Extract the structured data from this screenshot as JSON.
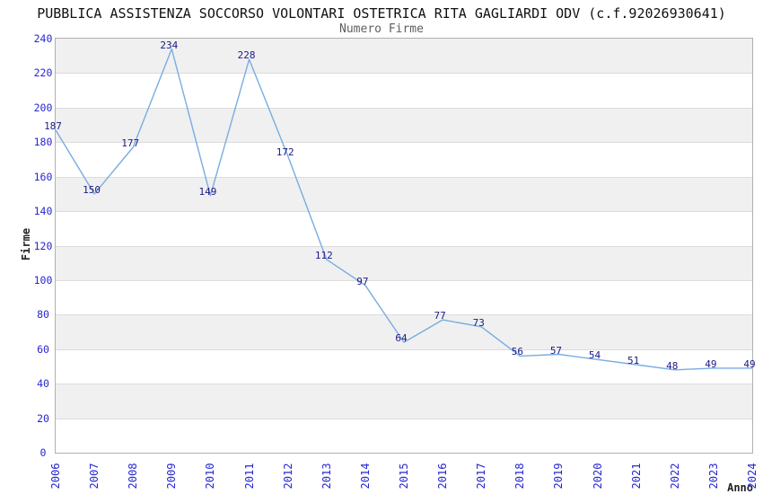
{
  "chart_data": {
    "type": "line",
    "title": "PUBBLICA ASSISTENZA SOCCORSO VOLONTARI OSTETRICA RITA GAGLIARDI ODV (c.f.92026930641)",
    "subtitle": "Numero Firme",
    "xlabel": "Anno",
    "ylabel": "Firme",
    "x": [
      2006,
      2007,
      2008,
      2009,
      2010,
      2011,
      2012,
      2013,
      2014,
      2015,
      2016,
      2017,
      2018,
      2019,
      2020,
      2021,
      2022,
      2023,
      2024
    ],
    "values": [
      187,
      150,
      177,
      234,
      149,
      228,
      172,
      112,
      97,
      64,
      77,
      73,
      56,
      57,
      54,
      51,
      48,
      49,
      49
    ],
    "ylim": [
      0,
      240
    ],
    "ytick_step": 20,
    "grid": "horizontal-bands-alternating",
    "legend": "none",
    "data_labels": true,
    "x_tick_rotation": -90
  },
  "colors": {
    "line": "#79ace2",
    "data_label": "#191988",
    "tick_label": "#2626d2",
    "band_fill": "#f0f0f0",
    "gridline": "#dcdcdc",
    "plot_border": "#b0b0b0",
    "title": "#111111",
    "subtitle": "#5f5f5f",
    "axis_title": "#222222"
  }
}
